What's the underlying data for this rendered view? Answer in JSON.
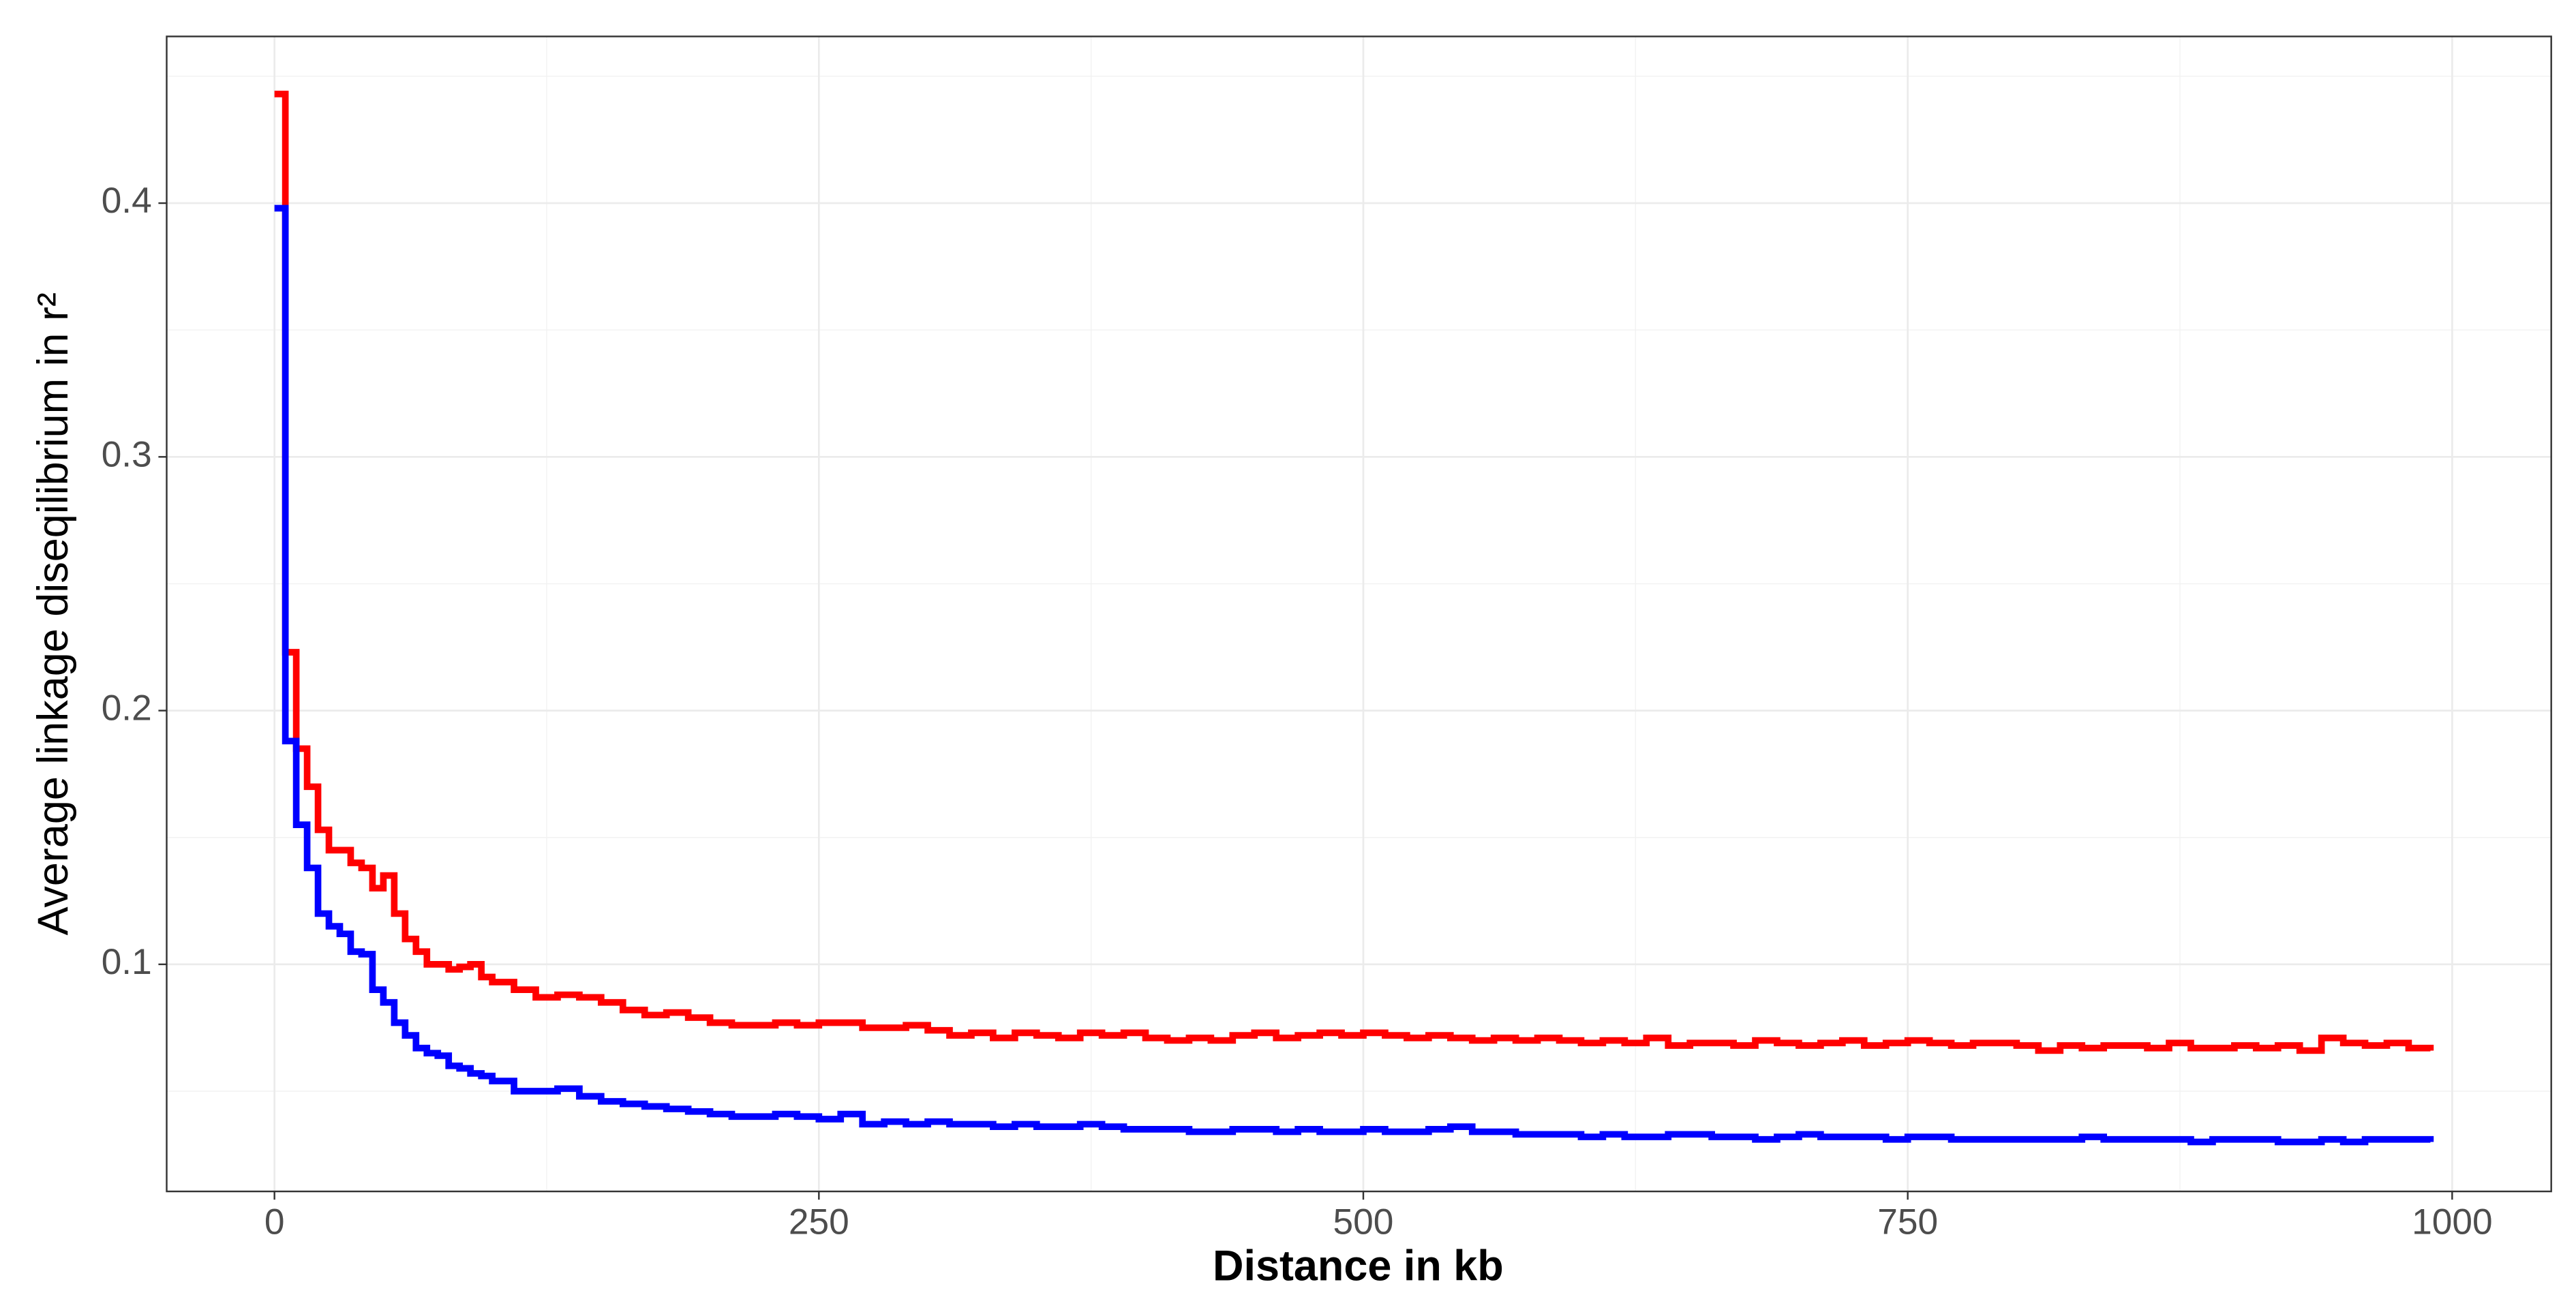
{
  "chart_data": {
    "type": "step",
    "x_label": "Distance in kb",
    "y_label": "Average linkage diseqilibrium in r²",
    "x": [
      0,
      5,
      10,
      15,
      20,
      25,
      30,
      35,
      40,
      45,
      50,
      55,
      60,
      65,
      70,
      75,
      80,
      85,
      90,
      95,
      100,
      110,
      120,
      130,
      140,
      150,
      160,
      170,
      180,
      190,
      200,
      210,
      220,
      230,
      240,
      250,
      260,
      270,
      280,
      290,
      300,
      310,
      320,
      330,
      340,
      350,
      360,
      370,
      380,
      390,
      400,
      410,
      420,
      430,
      440,
      450,
      460,
      470,
      480,
      490,
      500,
      510,
      520,
      530,
      540,
      550,
      560,
      570,
      580,
      590,
      600,
      610,
      620,
      630,
      640,
      650,
      660,
      670,
      680,
      690,
      700,
      710,
      720,
      730,
      740,
      750,
      760,
      770,
      780,
      790,
      800,
      810,
      820,
      830,
      840,
      850,
      860,
      870,
      880,
      890,
      900,
      910,
      920,
      930,
      940,
      950,
      960,
      970,
      980,
      990
    ],
    "series": [
      {
        "color": "#ff0000",
        "values": [
          0.443,
          0.223,
          0.185,
          0.17,
          0.153,
          0.145,
          0.145,
          0.14,
          0.138,
          0.13,
          0.135,
          0.12,
          0.11,
          0.105,
          0.1,
          0.1,
          0.098,
          0.099,
          0.1,
          0.095,
          0.093,
          0.09,
          0.087,
          0.088,
          0.087,
          0.085,
          0.082,
          0.08,
          0.081,
          0.079,
          0.077,
          0.076,
          0.076,
          0.077,
          0.076,
          0.077,
          0.077,
          0.075,
          0.075,
          0.076,
          0.074,
          0.072,
          0.073,
          0.071,
          0.073,
          0.072,
          0.071,
          0.073,
          0.072,
          0.073,
          0.071,
          0.07,
          0.071,
          0.07,
          0.072,
          0.073,
          0.071,
          0.072,
          0.073,
          0.072,
          0.073,
          0.072,
          0.071,
          0.072,
          0.071,
          0.07,
          0.071,
          0.07,
          0.071,
          0.07,
          0.069,
          0.07,
          0.069,
          0.071,
          0.068,
          0.069,
          0.069,
          0.068,
          0.07,
          0.069,
          0.068,
          0.069,
          0.07,
          0.068,
          0.069,
          0.07,
          0.069,
          0.068,
          0.069,
          0.069,
          0.068,
          0.066,
          0.068,
          0.067,
          0.068,
          0.068,
          0.067,
          0.069,
          0.067,
          0.067,
          0.068,
          0.067,
          0.068,
          0.066,
          0.071,
          0.069,
          0.068,
          0.069,
          0.067,
          0.066
        ]
      },
      {
        "color": "#0000ff",
        "values": [
          0.398,
          0.188,
          0.155,
          0.138,
          0.12,
          0.115,
          0.112,
          0.105,
          0.104,
          0.09,
          0.085,
          0.077,
          0.072,
          0.067,
          0.065,
          0.064,
          0.06,
          0.059,
          0.057,
          0.056,
          0.054,
          0.05,
          0.05,
          0.051,
          0.048,
          0.046,
          0.045,
          0.044,
          0.043,
          0.042,
          0.041,
          0.04,
          0.04,
          0.041,
          0.04,
          0.039,
          0.041,
          0.037,
          0.038,
          0.037,
          0.038,
          0.037,
          0.037,
          0.036,
          0.037,
          0.036,
          0.036,
          0.037,
          0.036,
          0.035,
          0.035,
          0.035,
          0.034,
          0.034,
          0.035,
          0.035,
          0.034,
          0.035,
          0.034,
          0.034,
          0.035,
          0.034,
          0.034,
          0.035,
          0.036,
          0.034,
          0.034,
          0.033,
          0.033,
          0.033,
          0.032,
          0.033,
          0.032,
          0.032,
          0.033,
          0.033,
          0.032,
          0.032,
          0.031,
          0.032,
          0.033,
          0.032,
          0.032,
          0.032,
          0.031,
          0.032,
          0.032,
          0.031,
          0.031,
          0.031,
          0.031,
          0.031,
          0.031,
          0.032,
          0.031,
          0.031,
          0.031,
          0.031,
          0.03,
          0.031,
          0.031,
          0.031,
          0.03,
          0.03,
          0.031,
          0.03,
          0.031,
          0.031,
          0.031,
          0.03
        ]
      }
    ],
    "xlim": [
      -49.5,
      1045.5
    ],
    "ylim": [
      0.0105,
      0.4657
    ],
    "xticks": [
      0,
      250,
      500,
      750,
      1000
    ],
    "yticks": [
      0.1,
      0.2,
      0.3,
      0.4
    ],
    "xminor": [
      125,
      375,
      625,
      875
    ],
    "yminor": [
      0.05,
      0.15,
      0.25,
      0.35,
      0.45
    ],
    "grid": true
  }
}
